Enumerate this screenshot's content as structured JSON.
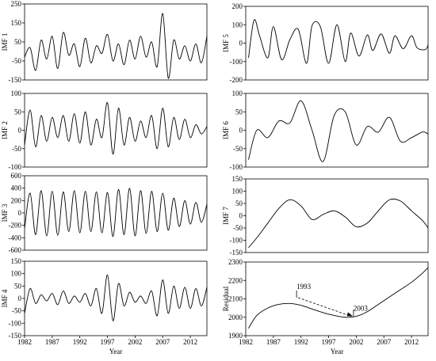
{
  "chart_data": [
    {
      "id": "imf1",
      "type": "line",
      "title": "",
      "ylabel": "IMF 1",
      "xlabel": "",
      "ylim": [
        -150,
        250
      ],
      "yticks": [
        -150,
        -50,
        50,
        150,
        250
      ],
      "xlim": [
        1982,
        2015
      ],
      "xticks": [],
      "series": [
        {
          "x": [
            1982,
            1983,
            1984,
            1985,
            1986,
            1987,
            1988,
            1989,
            1990,
            1991,
            1992,
            1993,
            1994,
            1995,
            1996,
            1997,
            1998,
            1999,
            2000,
            2001,
            2002,
            2003,
            2004,
            2005,
            2006,
            2007,
            2008,
            2009,
            2010,
            2011,
            2012,
            2013,
            2014,
            2015
          ],
          "values": [
            -30,
            20,
            -100,
            60,
            -40,
            80,
            -90,
            100,
            -20,
            40,
            -80,
            70,
            -60,
            30,
            -10,
            90,
            -50,
            40,
            -70,
            60,
            -40,
            80,
            -30,
            50,
            -80,
            200,
            -140,
            60,
            -40,
            30,
            -50,
            40,
            -60,
            80
          ]
        }
      ]
    },
    {
      "id": "imf2",
      "type": "line",
      "title": "",
      "ylabel": "IMF 2",
      "xlabel": "",
      "ylim": [
        -100,
        100
      ],
      "yticks": [
        -100,
        -50,
        0,
        50,
        100
      ],
      "xlim": [
        1982,
        2015
      ],
      "xticks": [],
      "series": [
        {
          "x": [
            1982,
            1983,
            1984,
            1985,
            1986,
            1987,
            1988,
            1989,
            1990,
            1991,
            1992,
            1993,
            1994,
            1995,
            1996,
            1997,
            1998,
            1999,
            2000,
            2001,
            2002,
            2003,
            2004,
            2005,
            2006,
            2007,
            2008,
            2009,
            2010,
            2011,
            2012,
            2013,
            2014,
            2015
          ],
          "values": [
            -40,
            55,
            -45,
            40,
            -30,
            35,
            -20,
            40,
            -30,
            45,
            -35,
            50,
            -40,
            30,
            -20,
            75,
            -65,
            60,
            -40,
            35,
            -30,
            25,
            -20,
            40,
            -50,
            60,
            -45,
            35,
            -25,
            30,
            -20,
            15,
            -10,
            10
          ]
        }
      ]
    },
    {
      "id": "imf3",
      "type": "line",
      "title": "",
      "ylabel": "IMF 3",
      "xlabel": "",
      "ylim": [
        -600,
        600
      ],
      "yticks": [
        -600,
        -400,
        -200,
        0,
        200,
        400,
        600
      ],
      "xlim": [
        1982,
        2015
      ],
      "xticks": [],
      "series": [
        {
          "x": [
            1982,
            1983,
            1984,
            1985,
            1986,
            1987,
            1988,
            1989,
            1990,
            1991,
            1992,
            1993,
            1994,
            1995,
            1996,
            1997,
            1998,
            1999,
            2000,
            2001,
            2002,
            2003,
            2004,
            2005,
            2006,
            2007,
            2008,
            2009,
            2010,
            2011,
            2012,
            2013,
            2014,
            2015
          ],
          "values": [
            -250,
            320,
            -350,
            360,
            -370,
            350,
            -360,
            340,
            -300,
            360,
            -320,
            350,
            -300,
            340,
            -320,
            330,
            -380,
            380,
            -350,
            400,
            -370,
            360,
            -330,
            350,
            -300,
            320,
            -280,
            240,
            -220,
            200,
            -180,
            170,
            -150,
            140
          ]
        }
      ]
    },
    {
      "id": "imf4",
      "type": "line",
      "title": "",
      "ylabel": "IMF 4",
      "xlabel": "Year",
      "ylim": [
        -150,
        150
      ],
      "yticks": [
        -150,
        -100,
        -50,
        0,
        50,
        100,
        150
      ],
      "xlim": [
        1982,
        2015
      ],
      "xticks": [
        1982,
        1987,
        1992,
        1997,
        2002,
        2007,
        2012
      ],
      "series": [
        {
          "x": [
            1982,
            1983,
            1984,
            1985,
            1986,
            1987,
            1988,
            1989,
            1990,
            1991,
            1992,
            1993,
            1994,
            1995,
            1996,
            1997,
            1998,
            1999,
            2000,
            2001,
            2002,
            2003,
            2004,
            2005,
            2006,
            2007,
            2008,
            2009,
            2010,
            2011,
            2012,
            2013,
            2014,
            2015
          ],
          "values": [
            -60,
            40,
            -20,
            15,
            -10,
            20,
            -25,
            30,
            -20,
            10,
            -15,
            20,
            -30,
            40,
            -60,
            95,
            -90,
            60,
            -30,
            25,
            -15,
            10,
            -20,
            30,
            -70,
            75,
            -60,
            50,
            -40,
            45,
            -40,
            40,
            -30,
            45
          ]
        }
      ]
    },
    {
      "id": "imf5",
      "type": "line",
      "title": "",
      "ylabel": "IMF 5",
      "xlabel": "",
      "ylim": [
        -200,
        200
      ],
      "yticks": [
        -200,
        -100,
        0,
        100,
        200
      ],
      "xlim": [
        1982,
        2015
      ],
      "xticks": [],
      "series": [
        {
          "x": [
            1982.5,
            1983.5,
            1984.5,
            1986,
            1987,
            1988.5,
            1990,
            1991.5,
            1993,
            1994,
            1995.5,
            1997,
            1998.5,
            2000,
            2001,
            2002.5,
            2004,
            2005,
            2006.5,
            2008,
            2009,
            2010.5,
            2012,
            2013,
            2014.5,
            2015
          ],
          "values": [
            -80,
            125,
            40,
            -80,
            90,
            -90,
            20,
            75,
            -110,
            95,
            90,
            -110,
            100,
            -100,
            55,
            -70,
            45,
            -40,
            50,
            -55,
            40,
            -30,
            40,
            -25,
            -35,
            -10
          ]
        }
      ]
    },
    {
      "id": "imf6",
      "type": "line",
      "title": "",
      "ylabel": "IMF 6",
      "xlabel": "",
      "ylim": [
        -100,
        100
      ],
      "yticks": [
        -100,
        -50,
        0,
        50,
        100
      ],
      "xlim": [
        1982,
        2015
      ],
      "xticks": [],
      "series": [
        {
          "x": [
            1982.5,
            1984,
            1986,
            1988,
            1990,
            1992,
            1994,
            1996,
            1998,
            2000,
            2002,
            2004,
            2006,
            2008,
            2010,
            2012,
            2014,
            2015
          ],
          "values": [
            -80,
            0,
            -20,
            25,
            20,
            80,
            0,
            -85,
            40,
            50,
            -40,
            10,
            -5,
            35,
            -30,
            -20,
            -5,
            -10
          ]
        }
      ]
    },
    {
      "id": "imf7",
      "type": "line",
      "title": "",
      "ylabel": "IMF 7",
      "xlabel": "",
      "ylim": [
        -150,
        150
      ],
      "yticks": [
        -150,
        -100,
        -50,
        0,
        50,
        100,
        150
      ],
      "xlim": [
        1982,
        2015
      ],
      "xticks": [],
      "series": [
        {
          "x": [
            1982.5,
            1984,
            1986,
            1988,
            1990,
            1992,
            1994,
            1996,
            1998,
            2000,
            2002,
            2004,
            2006,
            2008,
            2010,
            2012,
            2014,
            2015
          ],
          "values": [
            -130,
            -90,
            -30,
            30,
            65,
            40,
            -15,
            5,
            20,
            -5,
            -45,
            -30,
            20,
            65,
            60,
            20,
            -20,
            -50
          ]
        }
      ]
    },
    {
      "id": "residual",
      "type": "line",
      "title": "",
      "ylabel": "Residual",
      "xlabel": "Year",
      "ylim": [
        1900,
        2300
      ],
      "yticks": [
        1900,
        2000,
        2100,
        2200,
        2300
      ],
      "xlim": [
        1982,
        2015
      ],
      "xticks": [
        1982,
        1987,
        1992,
        1997,
        2002,
        2007,
        2012
      ],
      "series": [
        {
          "x": [
            1982.5,
            1984,
            1986,
            1988,
            1990,
            1992,
            1994,
            1996,
            1998,
            2000,
            2002,
            2004,
            2006,
            2008,
            2010,
            2012,
            2014,
            2015
          ],
          "values": [
            1940,
            2010,
            2050,
            2070,
            2075,
            2065,
            2045,
            2025,
            2010,
            2000,
            2005,
            2030,
            2070,
            2110,
            2150,
            2190,
            2240,
            2270
          ]
        }
      ],
      "annotations": [
        {
          "label": "1993",
          "x": 1991.2,
          "y": 2115
        },
        {
          "label": "2003",
          "x": 2001.5,
          "y": 2010
        }
      ]
    }
  ]
}
